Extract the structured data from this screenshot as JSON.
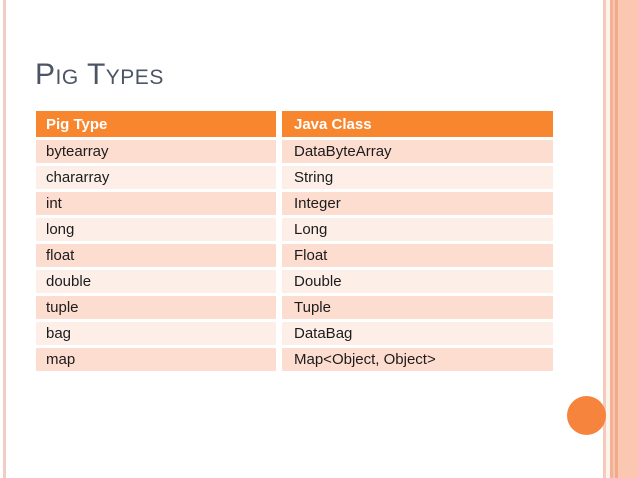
{
  "slide": {
    "title": "Pig Types"
  },
  "table": {
    "headers": [
      "Pig Type",
      "Java Class"
    ],
    "rows": [
      {
        "pig_type": "bytearray",
        "java_class": "DataByteArray"
      },
      {
        "pig_type": "chararray",
        "java_class": "String"
      },
      {
        "pig_type": "int",
        "java_class": "Integer"
      },
      {
        "pig_type": "long",
        "java_class": "Long"
      },
      {
        "pig_type": "float",
        "java_class": "Float"
      },
      {
        "pig_type": "double",
        "java_class": "Double"
      },
      {
        "pig_type": "tuple",
        "java_class": "Tuple"
      },
      {
        "pig_type": "bag",
        "java_class": "DataBag"
      },
      {
        "pig_type": "map",
        "java_class": "Map<Object, Object>"
      }
    ]
  },
  "colors": {
    "accent_orange": "#F7862F",
    "row_dark_pink": "#FDDDD0",
    "row_light_pink": "#FDEEE8",
    "title_gray": "#4C5565",
    "side_band_salmon": "#FBC7B0",
    "circle_orange": "#F6843C",
    "left_stripe_pink": "#F0CEC3"
  }
}
